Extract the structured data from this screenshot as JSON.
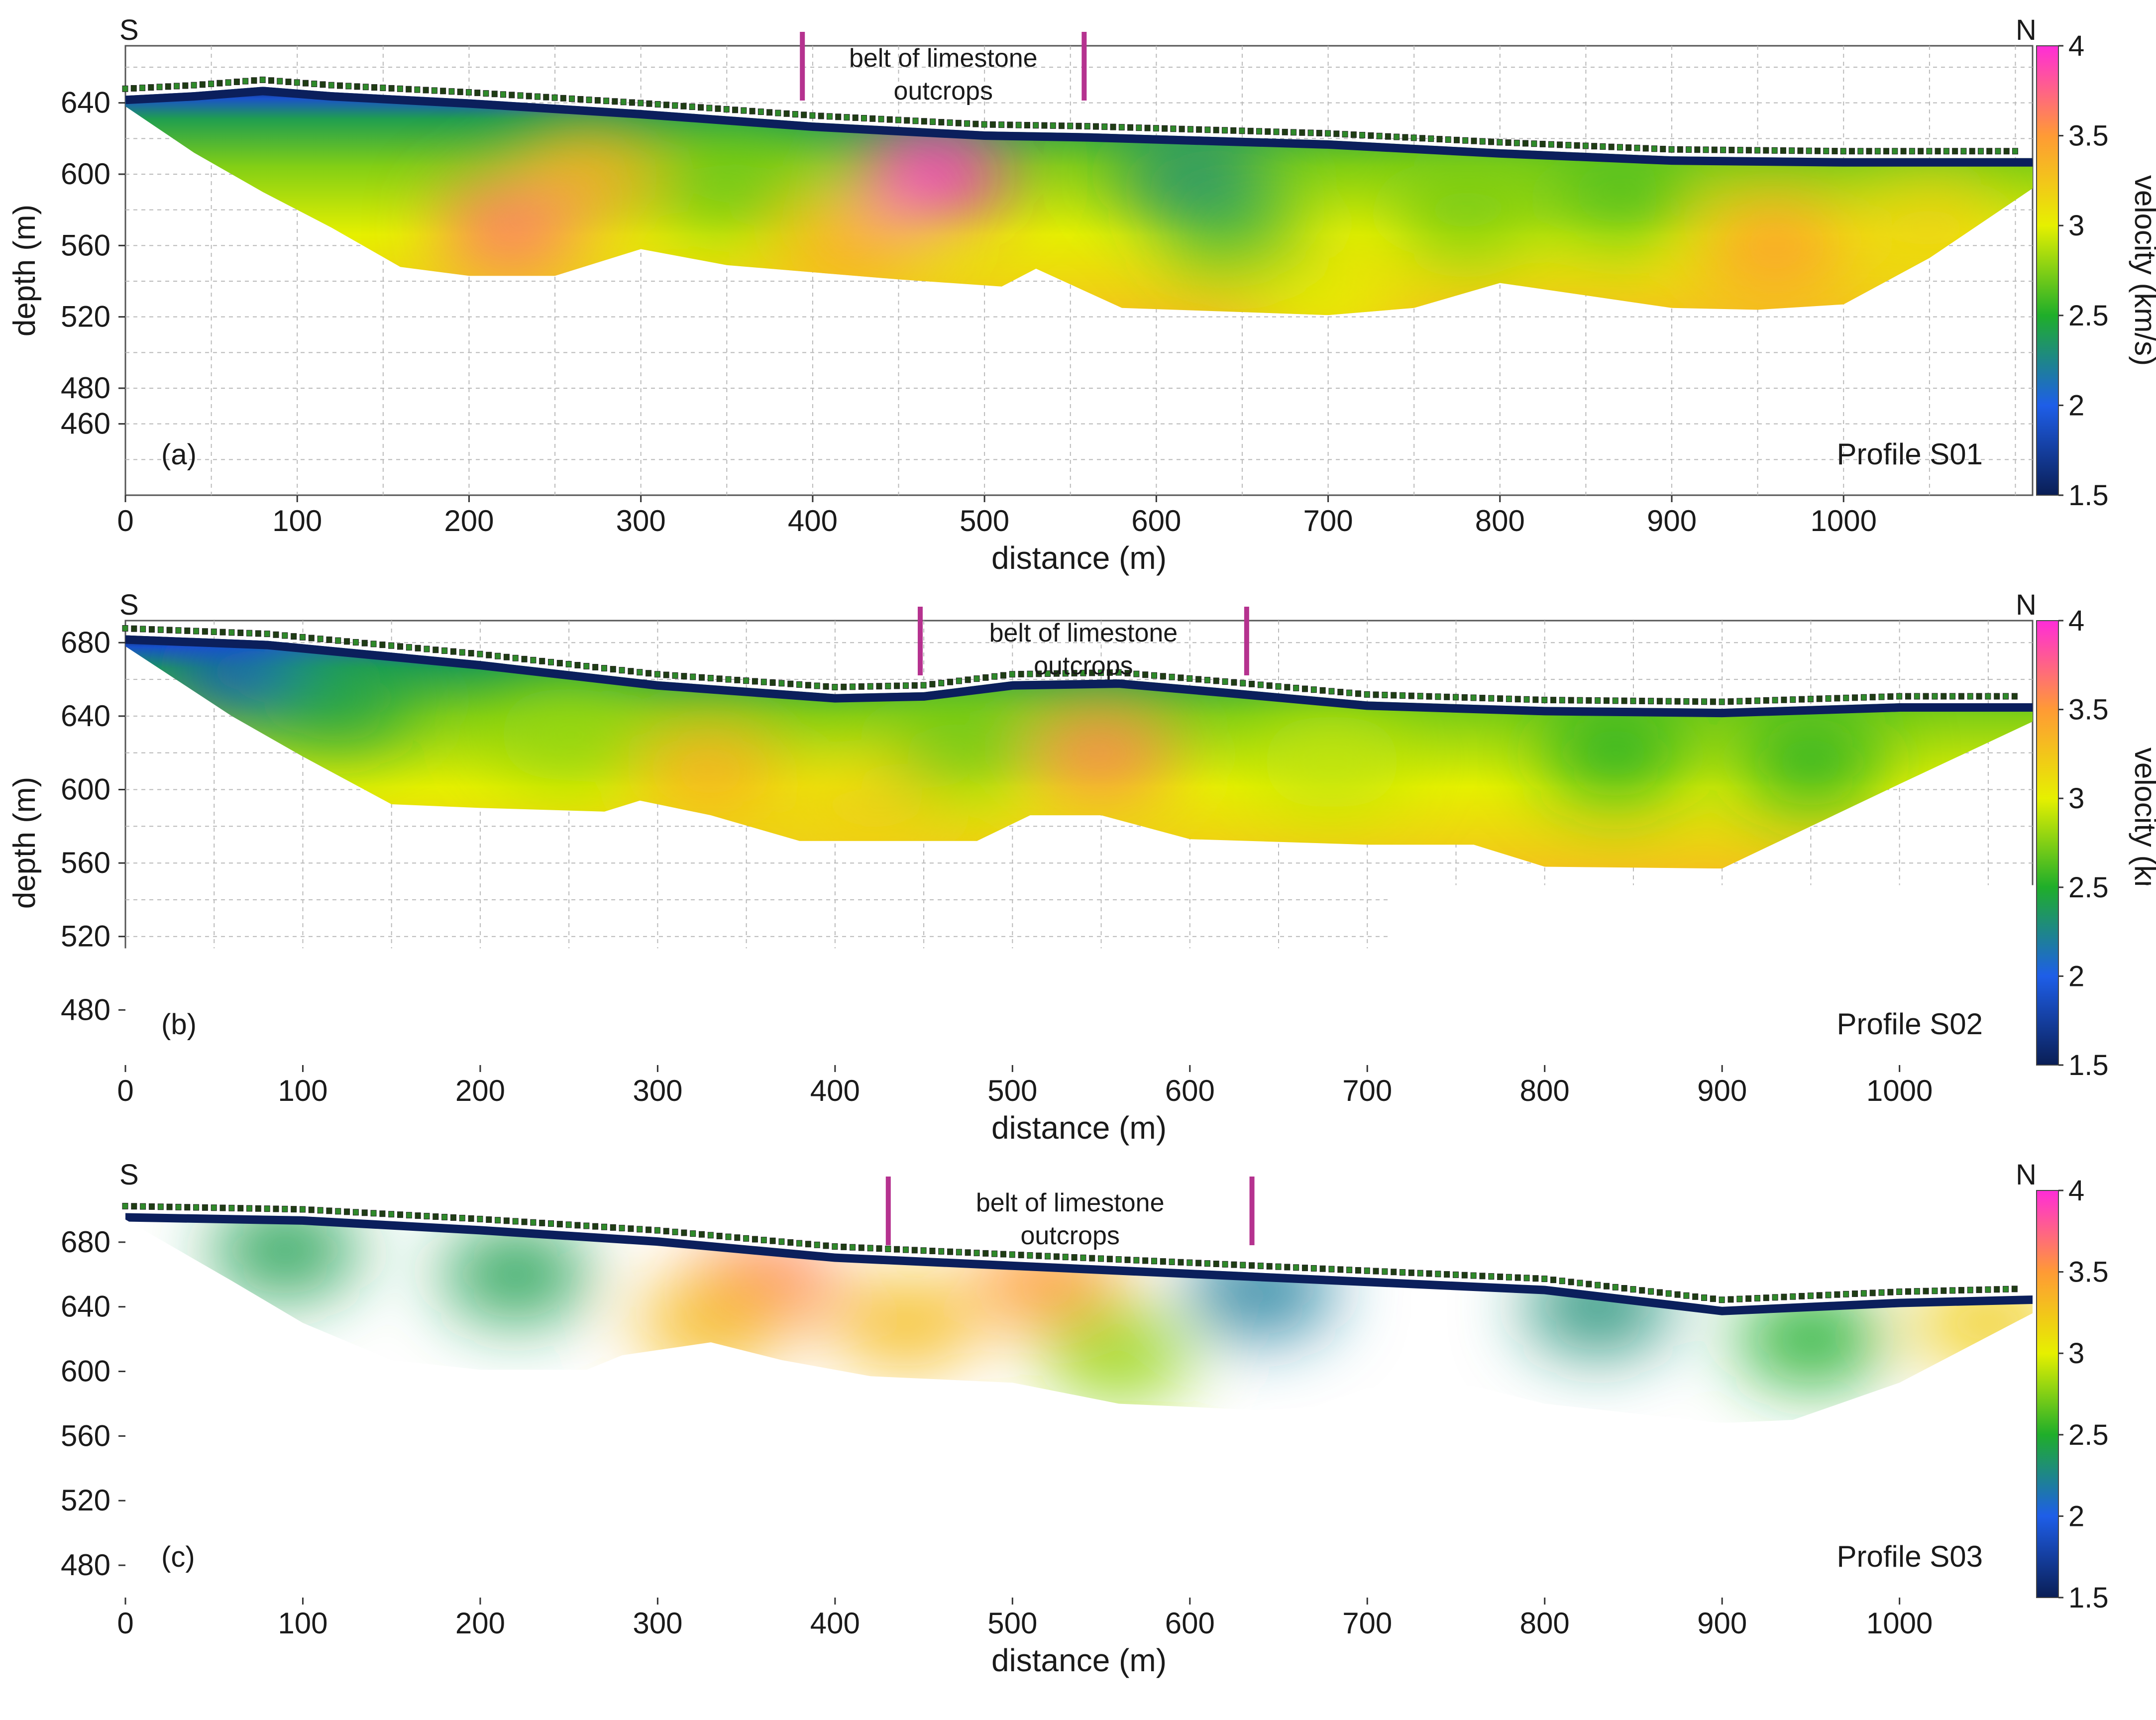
{
  "colorbar": {
    "label": "velocity (km/s)",
    "ticks": [
      "1.5",
      "2",
      "2.5",
      "3",
      "3.5",
      "4"
    ],
    "range": [
      1.5,
      4
    ],
    "colors": [
      "#0a1e55",
      "#1e5ee8",
      "#1fae2a",
      "#e6f000",
      "#ff9a35",
      "#ff2cd8"
    ]
  },
  "chart_data": [
    {
      "type": "heatmap",
      "panel_label": "(a)",
      "profile_label": "Profile S01",
      "left_label": "S",
      "right_label": "N",
      "xlabel": "distance (m)",
      "ylabel": "depth (m)",
      "xlim": [
        0,
        1110
      ],
      "ylim": [
        420,
        672
      ],
      "x_ticks": [
        "0",
        "100",
        "200",
        "300",
        "400",
        "500",
        "600",
        "700",
        "800",
        "900",
        "1000"
      ],
      "y_ticks": [
        "640",
        "600",
        "560",
        "520",
        "480",
        "460"
      ],
      "annotation": {
        "line1": "belt of limestone",
        "line2": "outcrops",
        "marker_x": [
          394,
          558
        ]
      },
      "surface": [
        [
          0,
          644
        ],
        [
          40,
          646
        ],
        [
          80,
          649
        ],
        [
          120,
          646
        ],
        [
          200,
          642
        ],
        [
          300,
          636
        ],
        [
          400,
          629
        ],
        [
          500,
          624
        ],
        [
          560,
          623
        ],
        [
          700,
          619
        ],
        [
          800,
          614
        ],
        [
          900,
          610
        ],
        [
          1000,
          609
        ],
        [
          1110,
          609
        ]
      ],
      "bottom": [
        [
          0,
          638
        ],
        [
          40,
          612
        ],
        [
          80,
          590
        ],
        [
          120,
          570
        ],
        [
          160,
          548
        ],
        [
          200,
          543
        ],
        [
          250,
          543
        ],
        [
          300,
          558
        ],
        [
          350,
          549
        ],
        [
          450,
          541
        ],
        [
          510,
          537
        ],
        [
          530,
          547
        ],
        [
          580,
          525
        ],
        [
          640,
          523
        ],
        [
          700,
          521
        ],
        [
          750,
          525
        ],
        [
          800,
          539
        ],
        [
          850,
          532
        ],
        [
          900,
          525
        ],
        [
          950,
          524
        ],
        [
          1000,
          527
        ],
        [
          1050,
          553
        ],
        [
          1110,
          592
        ]
      ],
      "anomalies": [
        {
          "x": 470,
          "depth": 600,
          "velocity": 4.0
        },
        {
          "x": 225,
          "depth": 570,
          "velocity": 3.7
        },
        {
          "x": 270,
          "depth": 600,
          "velocity": 3.4
        },
        {
          "x": 420,
          "depth": 560,
          "velocity": 3.4
        },
        {
          "x": 960,
          "depth": 560,
          "velocity": 3.5
        },
        {
          "x": 1050,
          "depth": 570,
          "velocity": 3.2
        },
        {
          "x": 650,
          "depth": 570,
          "velocity": 2.6
        },
        {
          "x": 620,
          "depth": 600,
          "velocity": 2.3
        },
        {
          "x": 780,
          "depth": 580,
          "velocity": 2.7
        },
        {
          "x": 870,
          "depth": 590,
          "velocity": 2.6
        },
        {
          "x": 350,
          "depth": 595,
          "velocity": 2.7
        },
        {
          "x": 700,
          "depth": 530,
          "velocity": 3.0
        }
      ]
    },
    {
      "type": "heatmap",
      "panel_label": "(b)",
      "profile_label": "Profile S02",
      "left_label": "S",
      "right_label": "N",
      "xlabel": "distance (m)",
      "ylabel": "depth (m)",
      "xlim": [
        0,
        1075
      ],
      "ylim": [
        450,
        692
      ],
      "x_ticks": [
        "0",
        "100",
        "200",
        "300",
        "400",
        "500",
        "600",
        "700",
        "800",
        "900",
        "1000"
      ],
      "y_ticks": [
        "680",
        "640",
        "600",
        "560",
        "520",
        "480"
      ],
      "annotation": {
        "line1": "belt of limestone",
        "line2": "outcrops",
        "marker_x": [
          448,
          632
        ]
      },
      "surface": [
        [
          0,
          684
        ],
        [
          80,
          681
        ],
        [
          200,
          670
        ],
        [
          300,
          659
        ],
        [
          400,
          652
        ],
        [
          450,
          653
        ],
        [
          500,
          659
        ],
        [
          560,
          660
        ],
        [
          620,
          655
        ],
        [
          700,
          648
        ],
        [
          800,
          645
        ],
        [
          900,
          644
        ],
        [
          1000,
          647
        ],
        [
          1075,
          647
        ]
      ],
      "bottom": [
        [
          0,
          678
        ],
        [
          60,
          640
        ],
        [
          100,
          618
        ],
        [
          150,
          592
        ],
        [
          200,
          590
        ],
        [
          270,
          588
        ],
        [
          290,
          594
        ],
        [
          330,
          586
        ],
        [
          380,
          572
        ],
        [
          480,
          572
        ],
        [
          510,
          586
        ],
        [
          550,
          586
        ],
        [
          600,
          573
        ],
        [
          700,
          570
        ],
        [
          760,
          570
        ],
        [
          800,
          558
        ],
        [
          900,
          557
        ],
        [
          950,
          580
        ],
        [
          1000,
          603
        ],
        [
          1075,
          637
        ]
      ],
      "anomalies": [
        {
          "x": 550,
          "depth": 620,
          "velocity": 3.6
        },
        {
          "x": 330,
          "depth": 610,
          "velocity": 3.4
        },
        {
          "x": 420,
          "depth": 590,
          "velocity": 3.2
        },
        {
          "x": 70,
          "depth": 665,
          "velocity": 1.9
        },
        {
          "x": 120,
          "depth": 650,
          "velocity": 2.4
        },
        {
          "x": 840,
          "depth": 620,
          "velocity": 2.5
        },
        {
          "x": 950,
          "depth": 615,
          "velocity": 2.5
        },
        {
          "x": 470,
          "depth": 625,
          "velocity": 2.7
        },
        {
          "x": 250,
          "depth": 630,
          "velocity": 2.8
        },
        {
          "x": 680,
          "depth": 615,
          "velocity": 2.9
        }
      ]
    },
    {
      "type": "heatmap",
      "panel_label": "(c)",
      "profile_label": "Profile S03",
      "left_label": "S",
      "right_label": "N",
      "xlabel": "distance (m)",
      "ylabel": "depth (m)",
      "xlim": [
        0,
        1075
      ],
      "ylim": [
        460,
        712
      ],
      "x_ticks": [
        "0",
        "100",
        "200",
        "300",
        "400",
        "500",
        "600",
        "700",
        "800",
        "900",
        "1000"
      ],
      "y_ticks": [
        "680",
        "640",
        "600",
        "560",
        "520",
        "480"
      ],
      "annotation": {
        "line1": "belt of limestone",
        "line2": "outcrops",
        "marker_x": [
          430,
          635
        ]
      },
      "surface": [
        [
          0,
          698
        ],
        [
          100,
          696
        ],
        [
          200,
          690
        ],
        [
          300,
          683
        ],
        [
          400,
          673
        ],
        [
          500,
          668
        ],
        [
          600,
          663
        ],
        [
          700,
          658
        ],
        [
          800,
          653
        ],
        [
          900,
          640
        ],
        [
          1000,
          645
        ],
        [
          1075,
          647
        ]
      ],
      "bottom": [
        [
          0,
          694
        ],
        [
          60,
          656
        ],
        [
          100,
          630
        ],
        [
          150,
          607
        ],
        [
          200,
          601
        ],
        [
          260,
          601
        ],
        [
          280,
          610
        ],
        [
          330,
          618
        ],
        [
          370,
          607
        ],
        [
          420,
          597
        ],
        [
          500,
          593
        ],
        [
          560,
          580
        ],
        [
          640,
          576
        ],
        [
          670,
          578
        ],
        [
          700,
          590
        ],
        [
          760,
          591
        ],
        [
          800,
          580
        ],
        [
          900,
          568
        ],
        [
          940,
          570
        ],
        [
          1000,
          593
        ],
        [
          1075,
          636
        ]
      ],
      "anomalies": [
        {
          "x": 360,
          "depth": 655,
          "velocity": 3.6
        },
        {
          "x": 520,
          "depth": 655,
          "velocity": 3.5
        },
        {
          "x": 440,
          "depth": 630,
          "velocity": 3.3
        },
        {
          "x": 330,
          "depth": 630,
          "velocity": 3.3
        },
        {
          "x": 220,
          "depth": 660,
          "velocity": 2.4
        },
        {
          "x": 90,
          "depth": 675,
          "velocity": 2.4
        },
        {
          "x": 640,
          "depth": 650,
          "velocity": 2.2
        },
        {
          "x": 830,
          "depth": 640,
          "velocity": 2.3
        },
        {
          "x": 950,
          "depth": 620,
          "velocity": 2.5
        },
        {
          "x": 1050,
          "depth": 630,
          "velocity": 3.2
        },
        {
          "x": 560,
          "depth": 610,
          "velocity": 2.8
        }
      ]
    }
  ]
}
